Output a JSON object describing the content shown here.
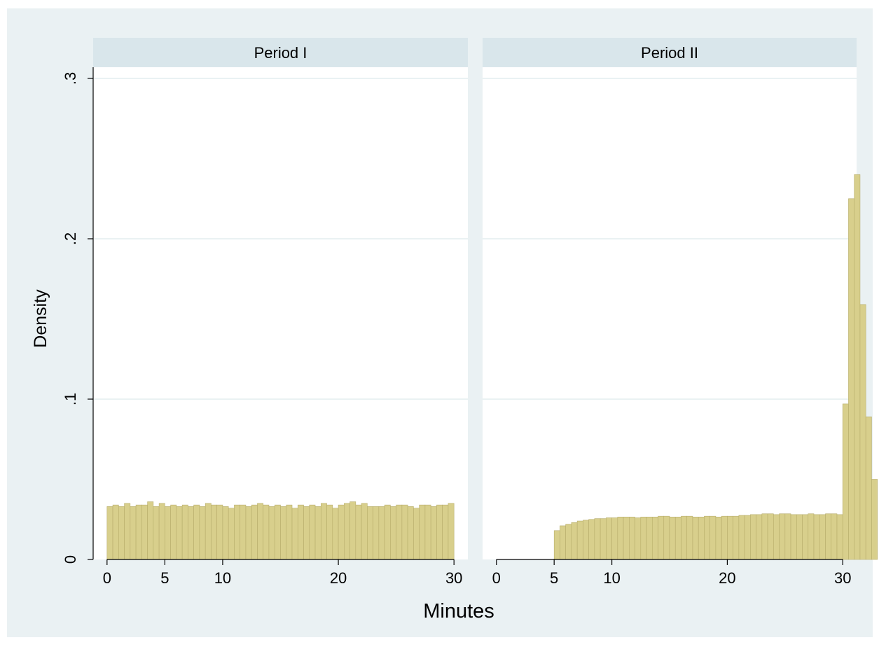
{
  "colors": {
    "outer_background": "#ffffff",
    "graph_background": "#eaf1f3",
    "plot_background": "#ffffff",
    "strip_background": "#d9e6eb",
    "gridline": "#eaf2f3",
    "bar_fill": "#d8cf8c",
    "bar_stroke": "#b7ad6b",
    "axis": "#000000"
  },
  "chart_data": {
    "type": "bar",
    "subtype": "histogram",
    "xlabel": "Minutes",
    "ylabel": "Density",
    "ylim": [
      0,
      0.3
    ],
    "yticks": [
      0,
      0.1,
      0.2,
      0.3
    ],
    "ytick_labels": [
      "0",
      ".1",
      ".2",
      ".3"
    ],
    "grid": true,
    "legend": "none",
    "panels": [
      {
        "title": "Period I",
        "xlim": [
          -1.2,
          31.2
        ],
        "xticks": [
          0,
          5,
          10,
          20,
          30
        ],
        "xtick_labels": [
          "0",
          "5",
          "10",
          "20",
          "30"
        ],
        "bin_start": 0,
        "bin_width": 0.5,
        "values": [
          0.033,
          0.034,
          0.033,
          0.035,
          0.033,
          0.034,
          0.034,
          0.036,
          0.033,
          0.035,
          0.033,
          0.034,
          0.033,
          0.034,
          0.033,
          0.034,
          0.033,
          0.035,
          0.034,
          0.034,
          0.033,
          0.032,
          0.034,
          0.034,
          0.033,
          0.034,
          0.035,
          0.034,
          0.033,
          0.034,
          0.033,
          0.034,
          0.032,
          0.034,
          0.033,
          0.034,
          0.033,
          0.035,
          0.034,
          0.032,
          0.034,
          0.035,
          0.036,
          0.034,
          0.035,
          0.033,
          0.033,
          0.033,
          0.034,
          0.033,
          0.034,
          0.034,
          0.033,
          0.032,
          0.034,
          0.034,
          0.033,
          0.034,
          0.034,
          0.035
        ]
      },
      {
        "title": "Period II",
        "xlim": [
          -1.2,
          31.2
        ],
        "xticks": [
          0,
          5,
          10,
          20,
          30
        ],
        "xtick_labels": [
          "0",
          "5",
          "10",
          "20",
          "30"
        ],
        "bin_start": 5,
        "bin_width": 0.5,
        "values": [
          0.018,
          0.021,
          0.022,
          0.023,
          0.024,
          0.0245,
          0.025,
          0.0255,
          0.0255,
          0.026,
          0.026,
          0.0265,
          0.0265,
          0.0265,
          0.026,
          0.0265,
          0.0265,
          0.0265,
          0.027,
          0.027,
          0.0265,
          0.0265,
          0.027,
          0.027,
          0.0265,
          0.0265,
          0.027,
          0.027,
          0.0265,
          0.027,
          0.027,
          0.027,
          0.0275,
          0.0275,
          0.028,
          0.028,
          0.0285,
          0.0285,
          0.028,
          0.0285,
          0.0285,
          0.028,
          0.028,
          0.028,
          0.0285,
          0.028,
          0.028,
          0.0285,
          0.0285,
          0.028,
          0.097,
          0.225,
          0.24,
          0.159,
          0.089,
          0.05
        ]
      }
    ]
  }
}
